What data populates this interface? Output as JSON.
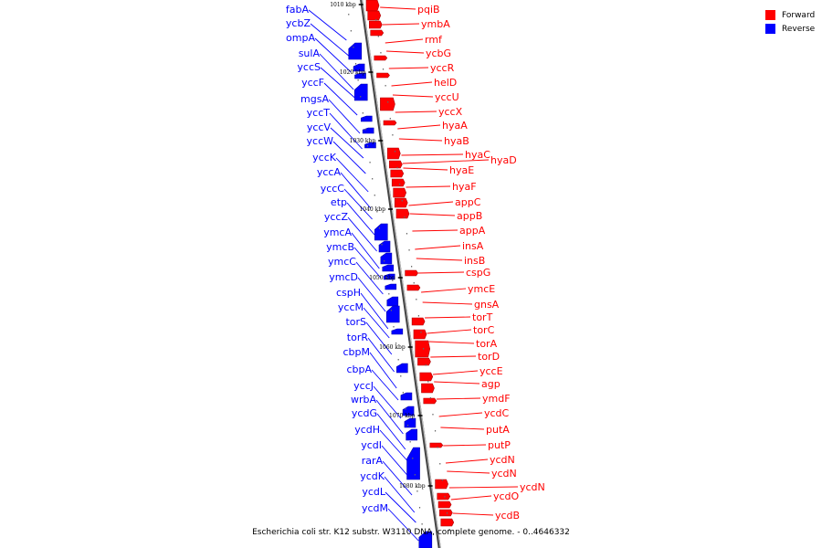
{
  "title": "Escherichia coli str. K12 substr. W3110 DNA, complete genome. - 0..4646332",
  "legend": [
    {
      "label": "Forward",
      "color": "#ff0000"
    },
    {
      "label": "Reverse",
      "color": "#0000ff"
    }
  ],
  "colors": {
    "forward": "#ff0000",
    "reverse": "#0000ff",
    "axis": "#888888"
  },
  "kbp_marks": [
    "1010 kbp",
    "1020 kbp",
    "1030 kbp",
    "1040 kbp",
    "1050 kbp",
    "1060 kbp",
    "1070 kbp",
    "1080 kbp"
  ],
  "forward_genes": [
    "pqiB",
    "ymbA",
    "rmf",
    "ycbG",
    "yccR",
    "helD",
    "yccU",
    "yccX",
    "hyaA",
    "hyaB",
    "hyaC",
    "hyaD",
    "hyaE",
    "hyaF",
    "appC",
    "appB",
    "appA",
    "insA",
    "insB",
    "cspG",
    "ymcE",
    "gnsA",
    "torT",
    "torC",
    "torA",
    "torD",
    "yccE",
    "agp",
    "ymdF",
    "ycdC",
    "putA",
    "putP",
    "ycdN",
    "ycdN",
    "ycdN",
    "ycdO",
    "ycdB"
  ],
  "reverse_genes": [
    "fabA",
    "ycbZ",
    "ompA",
    "sulA",
    "yccS",
    "yccF",
    "mgsA",
    "yccT",
    "yccV",
    "yccW",
    "yccK",
    "yccA",
    "yccC",
    "etp",
    "yccZ",
    "ymcA",
    "ymcB",
    "ymcC",
    "ymcD",
    "cspH",
    "yccM",
    "torS",
    "torR",
    "cbpM",
    "cbpA",
    "yccJ",
    "wrbA",
    "ycdG",
    "ycdH",
    "ycdI",
    "rarA",
    "ycdK",
    "ycdL",
    "ycdM"
  ]
}
